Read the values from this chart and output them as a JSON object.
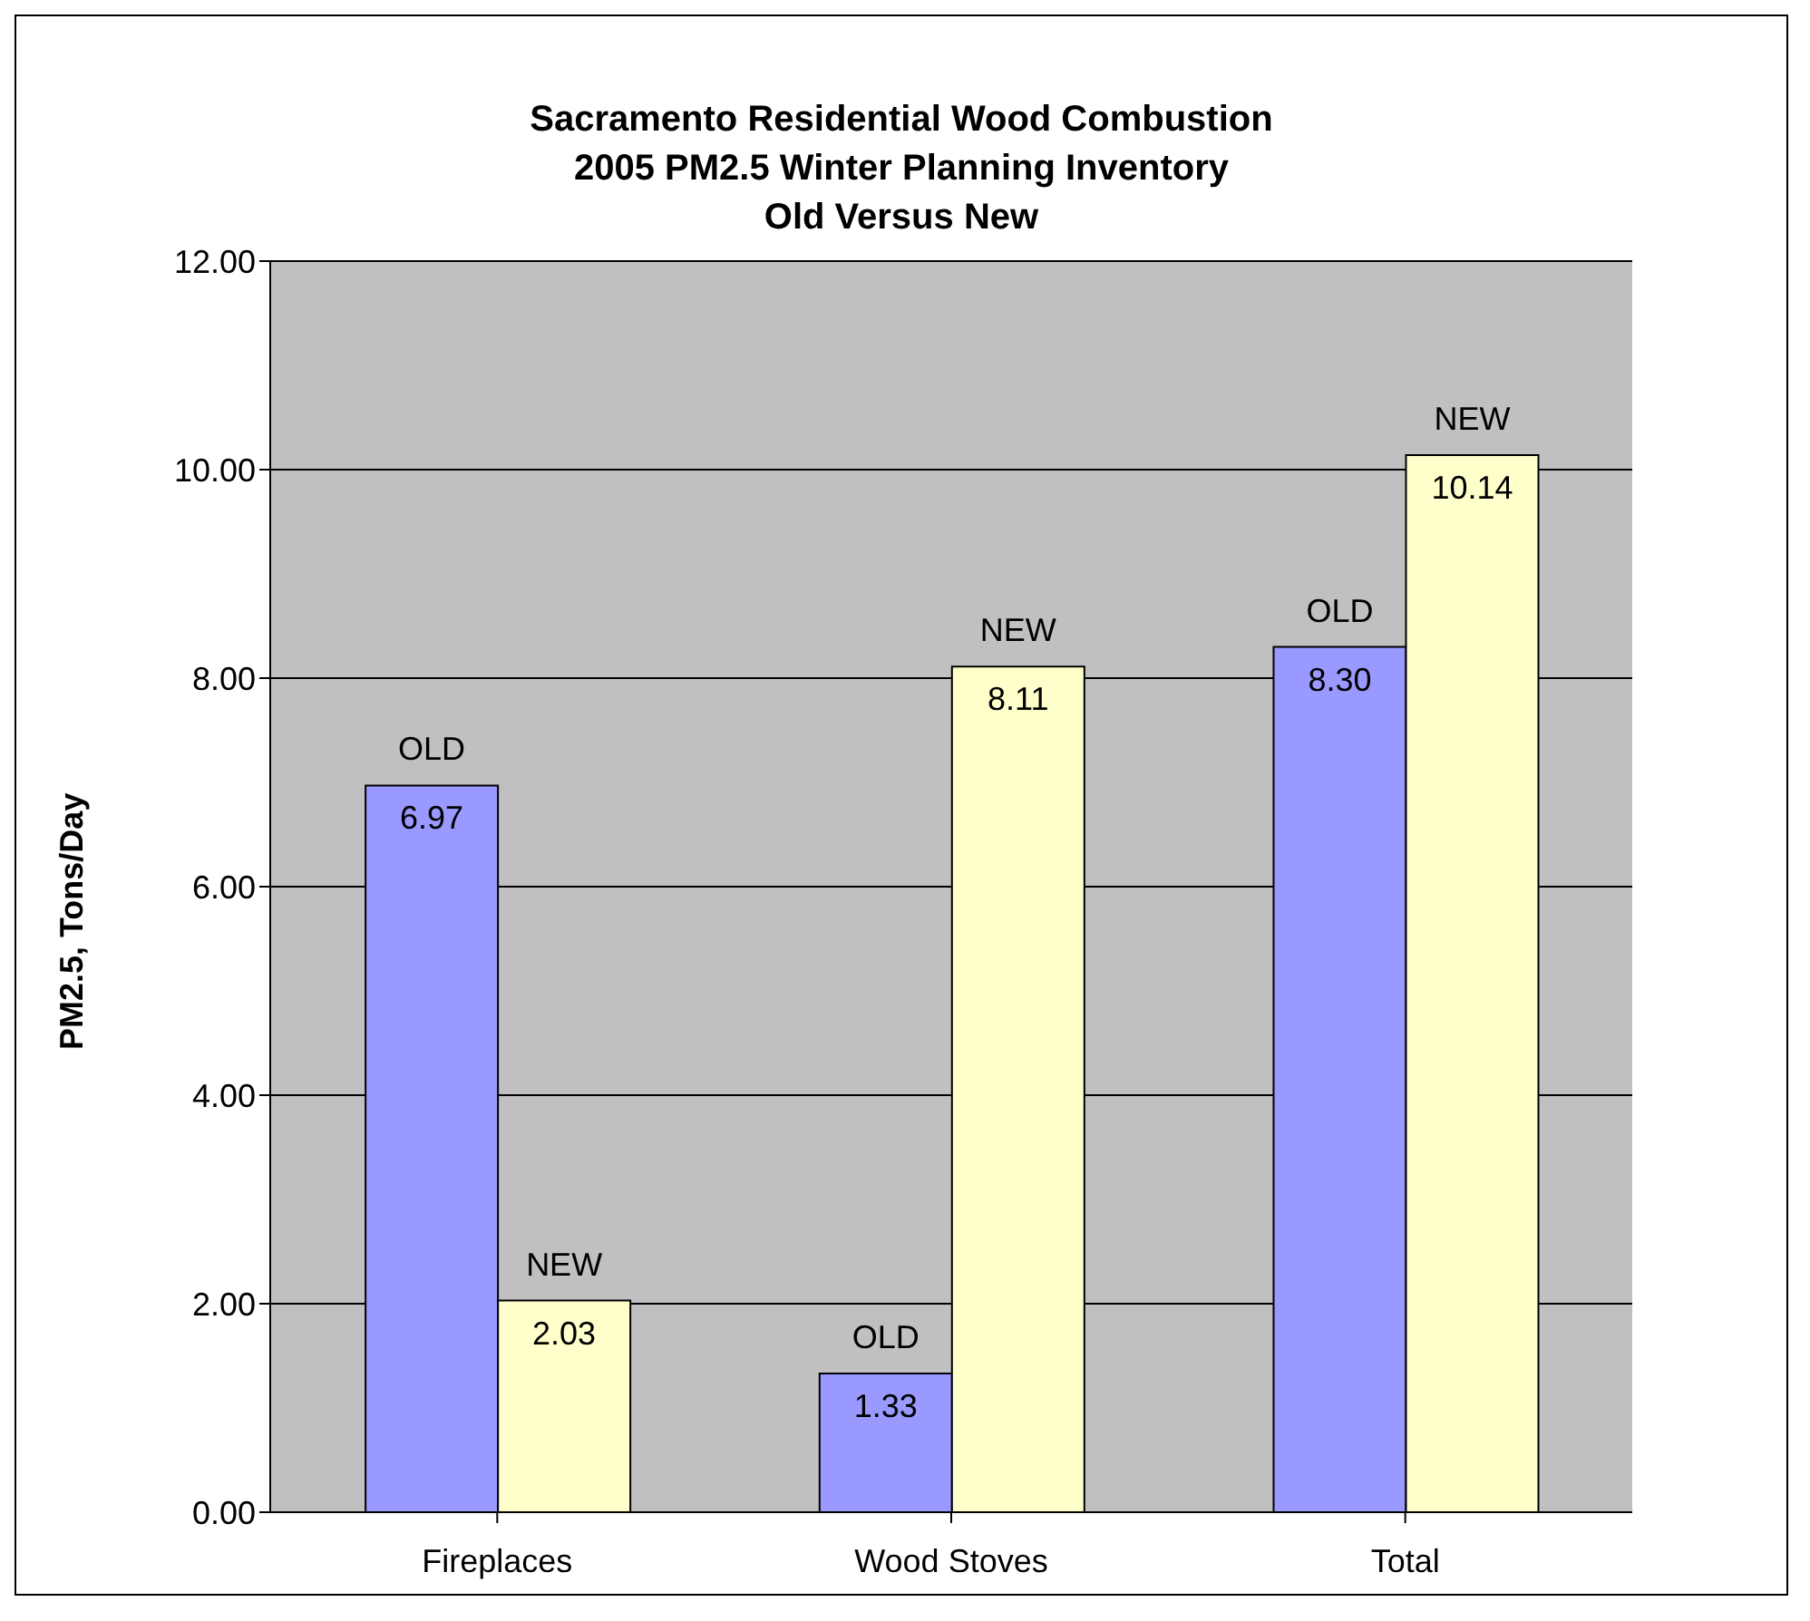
{
  "chart_data": {
    "type": "bar",
    "title": "Sacramento Residential Wood Combustion\n2005 PM2.5 Winter Planning Inventory\nOld Versus New",
    "ylabel": "PM2.5, Tons/Day",
    "categories": [
      "Fireplaces",
      "Wood Stoves",
      "Total"
    ],
    "series": [
      {
        "name": "OLD",
        "color": "#9999ff",
        "values": [
          6.97,
          1.33,
          8.3
        ],
        "value_labels": [
          "6.97",
          "1.33",
          "8.30"
        ]
      },
      {
        "name": "NEW",
        "color": "#ffffcc",
        "values": [
          2.03,
          8.11,
          10.14
        ],
        "value_labels": [
          "2.03",
          "8.11",
          "10.14"
        ]
      }
    ],
    "ylim": [
      0,
      12
    ],
    "yticks": [
      {
        "value": 0,
        "label": "0.00"
      },
      {
        "value": 2,
        "label": "2.00"
      },
      {
        "value": 4,
        "label": "4.00"
      },
      {
        "value": 6,
        "label": "6.00"
      },
      {
        "value": 8,
        "label": "8.00"
      },
      {
        "value": 10,
        "label": "10.00"
      },
      {
        "value": 12,
        "label": "12.00"
      }
    ],
    "grid": "y"
  }
}
